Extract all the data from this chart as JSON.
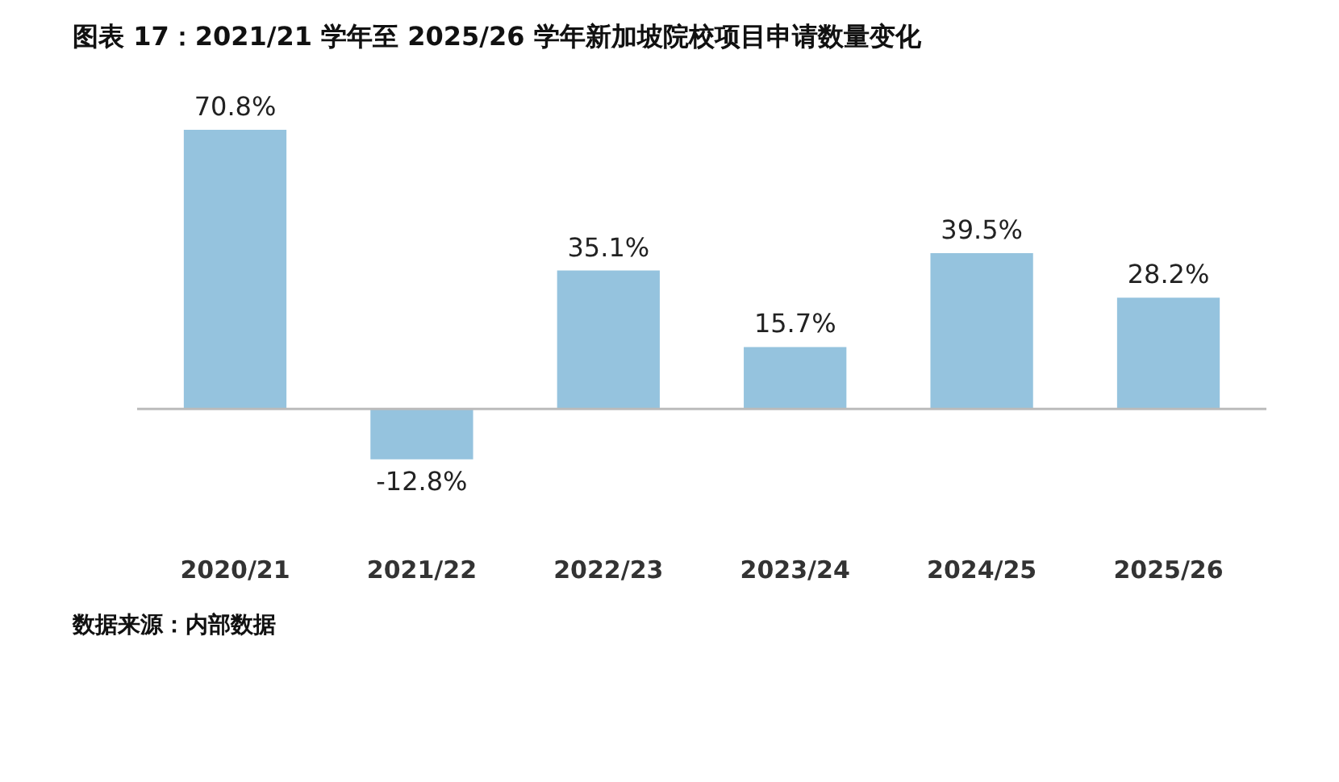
{
  "chart_data": {
    "type": "bar",
    "title": "图表 17：2021/21 学年至 2025/26 学年新加坡院校项目申请数量变化",
    "categories": [
      "2020/21",
      "2021/22",
      "2022/23",
      "2023/24",
      "2024/25",
      "2025/26"
    ],
    "values": [
      70.8,
      -12.8,
      35.1,
      15.7,
      39.5,
      28.2
    ],
    "value_labels": [
      "70.8%",
      "-12.8%",
      "35.1%",
      "15.7%",
      "39.5%",
      "28.2%"
    ],
    "color": "#95c3de",
    "grid": false,
    "annotations": [
      "数据来源：内部数据"
    ]
  }
}
